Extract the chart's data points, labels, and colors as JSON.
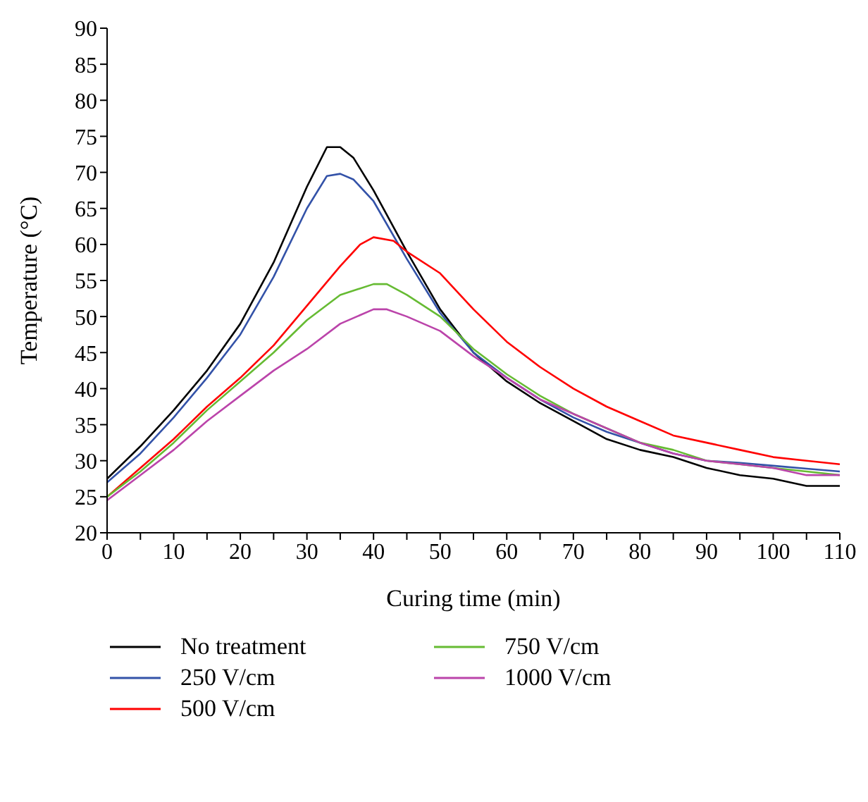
{
  "chart_data": {
    "type": "line",
    "xlabel": "Curing time (min)",
    "ylabel": "Temperature (°C)",
    "xlim": [
      0,
      110
    ],
    "ylim": [
      20,
      90
    ],
    "xticks": [
      0,
      {
        "value": 5,
        "label": null
      },
      10,
      {
        "value": 15,
        "label": null
      },
      20,
      {
        "value": 25,
        "label": null
      },
      30,
      {
        "value": 35,
        "label": null
      },
      40,
      {
        "value": 45,
        "label": null
      },
      50,
      {
        "value": 55,
        "label": null
      },
      60,
      {
        "value": 65,
        "label": null
      },
      70,
      {
        "value": 75,
        "label": null
      },
      80,
      {
        "value": 85,
        "label": null
      },
      90,
      {
        "value": 95,
        "label": null
      },
      100,
      {
        "value": 105,
        "label": null
      },
      110
    ],
    "yticks": [
      20,
      25,
      30,
      35,
      40,
      45,
      50,
      55,
      60,
      65,
      70,
      75,
      80,
      85,
      90
    ],
    "grid": false,
    "legend": "bottom",
    "marker": "none",
    "line_style": "solid",
    "series": [
      {
        "name": "No treatment",
        "color": "#000000",
        "x": [
          0,
          5,
          10,
          15,
          20,
          25,
          30,
          33,
          35,
          37,
          40,
          45,
          50,
          55,
          60,
          65,
          70,
          75,
          80,
          85,
          90,
          95,
          100,
          105,
          110
        ],
        "values": [
          27.5,
          32,
          37,
          42.5,
          49,
          57.5,
          68,
          73.5,
          73.5,
          72,
          67.5,
          59,
          51,
          45,
          41,
          38,
          35.5,
          33,
          31.5,
          30.5,
          29,
          28,
          27.5,
          26.5,
          26.5
        ]
      },
      {
        "name": "250 V/cm",
        "color": "#3352a8",
        "x": [
          0,
          5,
          10,
          15,
          20,
          25,
          30,
          33,
          35,
          37,
          40,
          45,
          50,
          55,
          60,
          65,
          70,
          75,
          80,
          85,
          90,
          95,
          100,
          105,
          110
        ],
        "values": [
          27,
          31,
          36,
          41.5,
          47.5,
          55.5,
          65,
          69.5,
          69.8,
          69,
          66,
          58,
          50.5,
          45,
          41.5,
          38.5,
          36,
          34,
          32.5,
          31,
          30,
          29.7,
          29.3,
          28.9,
          28.5
        ]
      },
      {
        "name": "500 V/cm",
        "color": "#ff0000",
        "x": [
          0,
          5,
          10,
          15,
          20,
          25,
          30,
          35,
          38,
          40,
          43,
          45,
          50,
          55,
          60,
          65,
          70,
          75,
          80,
          85,
          90,
          95,
          100,
          105,
          110
        ],
        "values": [
          25,
          29,
          33,
          37.5,
          41.5,
          46,
          51.5,
          57,
          60,
          61,
          60.5,
          59,
          56,
          51,
          46.5,
          43,
          40,
          37.5,
          35.5,
          33.5,
          32.5,
          31.5,
          30.5,
          30,
          29.5
        ]
      },
      {
        "name": "750 V/cm",
        "color": "#66bb33",
        "x": [
          0,
          5,
          10,
          15,
          20,
          25,
          30,
          35,
          40,
          42,
          45,
          50,
          55,
          60,
          65,
          70,
          75,
          80,
          85,
          90,
          95,
          100,
          105,
          110
        ],
        "values": [
          25,
          28.5,
          32.5,
          37,
          41,
          45,
          49.5,
          53,
          54.5,
          54.5,
          53,
          50,
          45.5,
          42,
          39,
          36.5,
          34.5,
          32.5,
          31.5,
          30,
          29.5,
          29,
          28.5,
          28
        ]
      },
      {
        "name": "1000 V/cm",
        "color": "#bb44aa",
        "x": [
          0,
          5,
          10,
          15,
          20,
          25,
          30,
          35,
          40,
          42,
          45,
          50,
          55,
          60,
          65,
          70,
          75,
          80,
          85,
          90,
          95,
          100,
          105,
          110
        ],
        "values": [
          24.5,
          28,
          31.5,
          35.5,
          39,
          42.5,
          45.5,
          49,
          51,
          51,
          50,
          48,
          44.5,
          41.5,
          38.5,
          36.5,
          34.5,
          32.5,
          31,
          30,
          29.5,
          29,
          28,
          28
        ]
      }
    ]
  }
}
